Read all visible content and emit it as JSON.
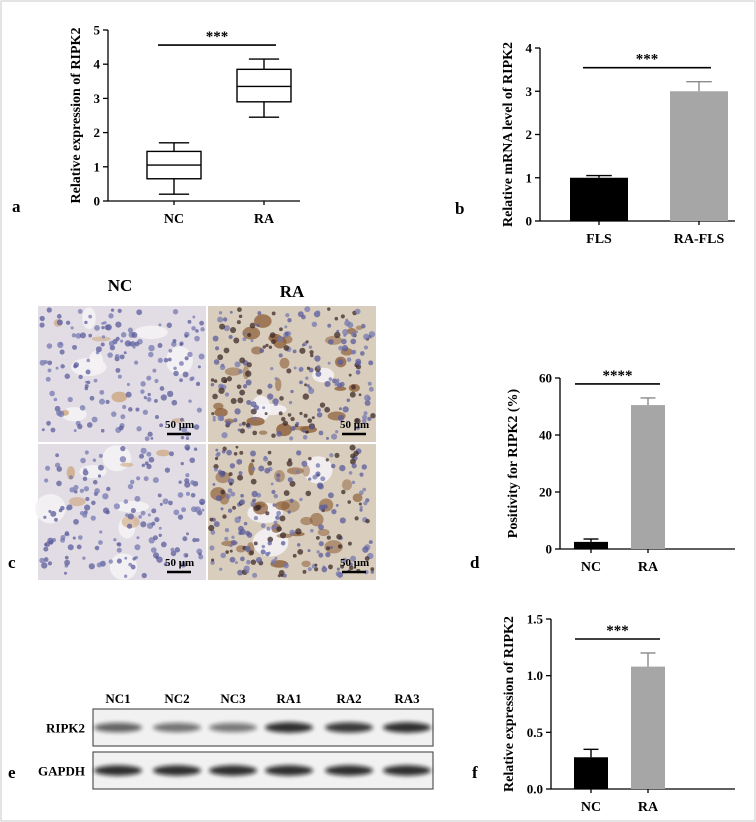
{
  "colors": {
    "nc": "#000000",
    "ra": "#a6a6a6",
    "frame": "#bfbfbf"
  },
  "chart_data": [
    {
      "id": "a",
      "panel_letter": "a",
      "type": "box",
      "ylabel": "Relative expression of RIPK2",
      "ylim": [
        0,
        5
      ],
      "yticks": [
        "0",
        "1",
        "2",
        "3",
        "4",
        "5"
      ],
      "categories": [
        "NC",
        "RA"
      ],
      "boxes": [
        {
          "min": 0.2,
          "q1": 0.65,
          "median": 1.05,
          "q3": 1.45,
          "max": 1.7
        },
        {
          "min": 2.45,
          "q1": 2.9,
          "median": 3.35,
          "q3": 3.85,
          "max": 4.15
        }
      ],
      "significance": "***"
    },
    {
      "id": "b",
      "panel_letter": "b",
      "type": "bar",
      "ylabel": "Relative mRNA level of RIPK2",
      "ylim": [
        0,
        4
      ],
      "yticks": [
        "0",
        "1",
        "2",
        "3",
        "4"
      ],
      "categories": [
        "FLS",
        "RA-FLS"
      ],
      "values": [
        1.0,
        3.0
      ],
      "errors": [
        0.05,
        0.22
      ],
      "significance": "***"
    },
    {
      "id": "d",
      "panel_letter": "d",
      "type": "bar",
      "ylabel": "Positivity  for RIPK2 (%)",
      "ylim": [
        0,
        60
      ],
      "yticks": [
        "0",
        "20",
        "40",
        "60"
      ],
      "categories": [
        "NC",
        "RA"
      ],
      "values": [
        2.5,
        50.5
      ],
      "errors": [
        1.0,
        2.5
      ],
      "significance": "****"
    },
    {
      "id": "f",
      "panel_letter": "f",
      "type": "bar",
      "ylabel": "Relative expression of RIPK2",
      "ylim": [
        0,
        1.5
      ],
      "yticks": [
        "0.0",
        "0.5",
        "1.0",
        "1.5"
      ],
      "categories": [
        "NC",
        "RA"
      ],
      "values": [
        0.28,
        1.08
      ],
      "errors": [
        0.07,
        0.12
      ],
      "significance": "***"
    }
  ],
  "panel_c": {
    "letter": "c",
    "columns": [
      "NC",
      "RA"
    ],
    "scale_bar": "50 μm"
  },
  "panel_e": {
    "letter": "e",
    "lanes": [
      "NC1",
      "NC2",
      "NC3",
      "RA1",
      "RA2",
      "RA3"
    ],
    "rows": [
      {
        "label": "RIPK2",
        "intensity": [
          0.62,
          0.55,
          0.52,
          0.85,
          0.8,
          0.85
        ]
      },
      {
        "label": "GAPDH",
        "intensity": [
          0.85,
          0.85,
          0.85,
          0.85,
          0.85,
          0.85
        ]
      }
    ]
  }
}
